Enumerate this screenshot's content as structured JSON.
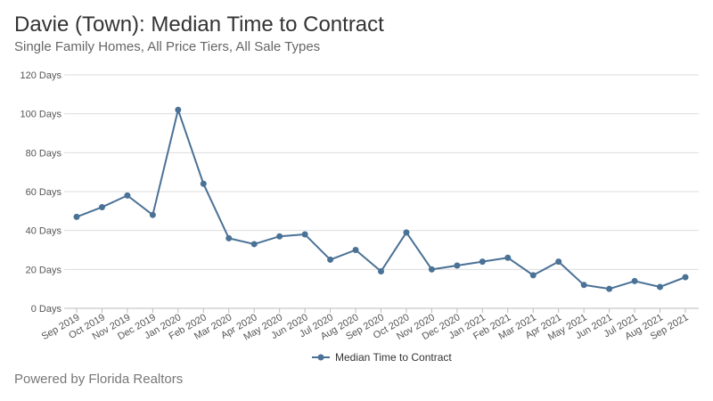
{
  "header": {
    "title": "Davie (Town): Median Time to Contract",
    "subtitle": "Single Family Homes, All Price Tiers, All Sale Types"
  },
  "footer": {
    "text": "Powered by Florida Realtors"
  },
  "colors": {
    "series": "#4a7196",
    "grid": "#dddddd",
    "axis": "#bbbbbb"
  },
  "chart_data": {
    "type": "line",
    "title": "Davie (Town): Median Time to Contract",
    "xlabel": "",
    "ylabel": "",
    "y_unit_suffix": " Days",
    "ylim": [
      0,
      120
    ],
    "yticks": [
      0,
      20,
      40,
      60,
      80,
      100,
      120
    ],
    "grid": true,
    "legend_position": "bottom-center",
    "categories": [
      "Sep 2019",
      "Oct 2019",
      "Nov 2019",
      "Dec 2019",
      "Jan 2020",
      "Feb 2020",
      "Mar 2020",
      "Apr 2020",
      "May 2020",
      "Jun 2020",
      "Jul 2020",
      "Aug 2020",
      "Sep 2020",
      "Oct 2020",
      "Nov 2020",
      "Dec 2020",
      "Jan 2021",
      "Feb 2021",
      "Mar 2021",
      "Apr 2021",
      "May 2021",
      "Jun 2021",
      "Jul 2021",
      "Aug 2021",
      "Sep 2021"
    ],
    "series": [
      {
        "name": "Median Time to Contract",
        "values": [
          47,
          52,
          58,
          48,
          102,
          64,
          36,
          33,
          37,
          38,
          25,
          30,
          19,
          39,
          20,
          22,
          24,
          26,
          17,
          24,
          12,
          10,
          14,
          11,
          16
        ]
      }
    ]
  }
}
